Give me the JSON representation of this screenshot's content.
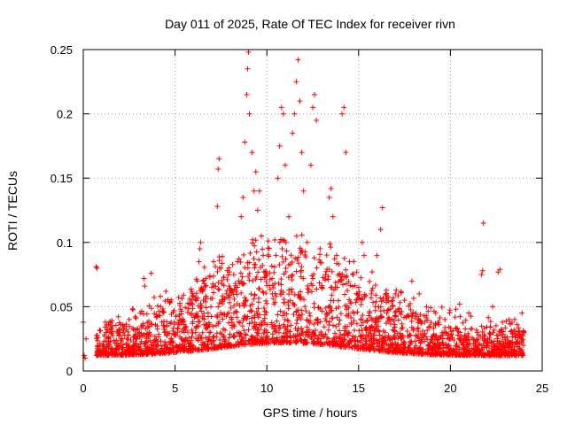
{
  "chart_data": {
    "type": "scatter",
    "title": "Day 011 of 2025, Rate Of TEC Index for receiver rivn",
    "xlabel": "GPS time / hours",
    "ylabel": "ROTI / TECUs",
    "xlim": [
      0,
      25
    ],
    "ylim": [
      0,
      0.25
    ],
    "xticks": [
      "0",
      "5",
      "10",
      "15",
      "20",
      "25"
    ],
    "yticks": [
      "0",
      "0.05",
      "0.1",
      "0.15",
      "0.2",
      "0.25"
    ],
    "grid": true,
    "marker": "+",
    "color": "#ff0000",
    "series": [
      {
        "points": [
          [
            0.0,
            0.038
          ],
          [
            0.05,
            0.012
          ],
          [
            0.1,
            0.01
          ],
          [
            0.15,
            0.025
          ],
          [
            0.7,
            0.081
          ],
          [
            0.75,
            0.08
          ],
          [
            1.2,
            0.038
          ],
          [
            1.5,
            0.035
          ],
          [
            2.0,
            0.03
          ],
          [
            2.5,
            0.04
          ],
          [
            3.1,
            0.045
          ],
          [
            3.3,
            0.072
          ],
          [
            3.35,
            0.066
          ],
          [
            3.7,
            0.076
          ],
          [
            4.2,
            0.058
          ],
          [
            4.5,
            0.062
          ],
          [
            5.3,
            0.048
          ],
          [
            5.8,
            0.052
          ],
          [
            6.0,
            0.058
          ],
          [
            6.2,
            0.07
          ],
          [
            6.3,
            0.085
          ],
          [
            6.35,
            0.095
          ],
          [
            6.4,
            0.1
          ],
          [
            6.8,
            0.045
          ],
          [
            7.0,
            0.065
          ],
          [
            7.1,
            0.085
          ],
          [
            7.3,
            0.128
          ],
          [
            7.35,
            0.157
          ],
          [
            7.4,
            0.165
          ],
          [
            7.5,
            0.08
          ],
          [
            7.8,
            0.06
          ],
          [
            8.2,
            0.075
          ],
          [
            8.4,
            0.085
          ],
          [
            8.6,
            0.12
          ],
          [
            8.7,
            0.135
          ],
          [
            8.8,
            0.178
          ],
          [
            8.9,
            0.215
          ],
          [
            8.95,
            0.235
          ],
          [
            9.0,
            0.248
          ],
          [
            9.05,
            0.2
          ],
          [
            9.2,
            0.17
          ],
          [
            9.3,
            0.14
          ],
          [
            9.4,
            0.155
          ],
          [
            9.5,
            0.125
          ],
          [
            9.6,
            0.14
          ],
          [
            9.7,
            0.105
          ],
          [
            9.8,
            0.09
          ],
          [
            10.0,
            0.075
          ],
          [
            10.3,
            0.06
          ],
          [
            10.5,
            0.09
          ],
          [
            10.6,
            0.15
          ],
          [
            10.7,
            0.175
          ],
          [
            10.8,
            0.205
          ],
          [
            10.9,
            0.2
          ],
          [
            11.0,
            0.16
          ],
          [
            11.2,
            0.12
          ],
          [
            11.4,
            0.185
          ],
          [
            11.5,
            0.2
          ],
          [
            11.6,
            0.225
          ],
          [
            11.7,
            0.242
          ],
          [
            11.8,
            0.21
          ],
          [
            11.9,
            0.17
          ],
          [
            12.0,
            0.14
          ],
          [
            12.2,
            0.1
          ],
          [
            12.4,
            0.16
          ],
          [
            12.5,
            0.205
          ],
          [
            12.6,
            0.215
          ],
          [
            12.7,
            0.195
          ],
          [
            12.9,
            0.095
          ],
          [
            13.2,
            0.075
          ],
          [
            13.4,
            0.135
          ],
          [
            13.5,
            0.142
          ],
          [
            13.6,
            0.12
          ],
          [
            13.8,
            0.09
          ],
          [
            14.1,
            0.2
          ],
          [
            14.2,
            0.205
          ],
          [
            14.3,
            0.17
          ],
          [
            14.5,
            0.085
          ],
          [
            14.7,
            0.075
          ],
          [
            15.0,
            0.065
          ],
          [
            15.2,
            0.1
          ],
          [
            15.3,
            0.09
          ],
          [
            15.7,
            0.06
          ],
          [
            16.0,
            0.09
          ],
          [
            16.2,
            0.11
          ],
          [
            16.3,
            0.127
          ],
          [
            16.5,
            0.055
          ],
          [
            17.0,
            0.06
          ],
          [
            17.5,
            0.055
          ],
          [
            17.9,
            0.07
          ],
          [
            18.3,
            0.06
          ],
          [
            18.7,
            0.05
          ],
          [
            19.2,
            0.045
          ],
          [
            19.7,
            0.04
          ],
          [
            20.3,
            0.048
          ],
          [
            20.5,
            0.052
          ],
          [
            21.0,
            0.045
          ],
          [
            21.7,
            0.075
          ],
          [
            21.75,
            0.078
          ],
          [
            21.8,
            0.115
          ],
          [
            22.3,
            0.05
          ],
          [
            22.6,
            0.077
          ],
          [
            22.7,
            0.079
          ],
          [
            23.2,
            0.04
          ],
          [
            23.5,
            0.04
          ],
          [
            23.9,
            0.045
          ],
          [
            24.0,
            0.03
          ]
        ]
      }
    ]
  }
}
